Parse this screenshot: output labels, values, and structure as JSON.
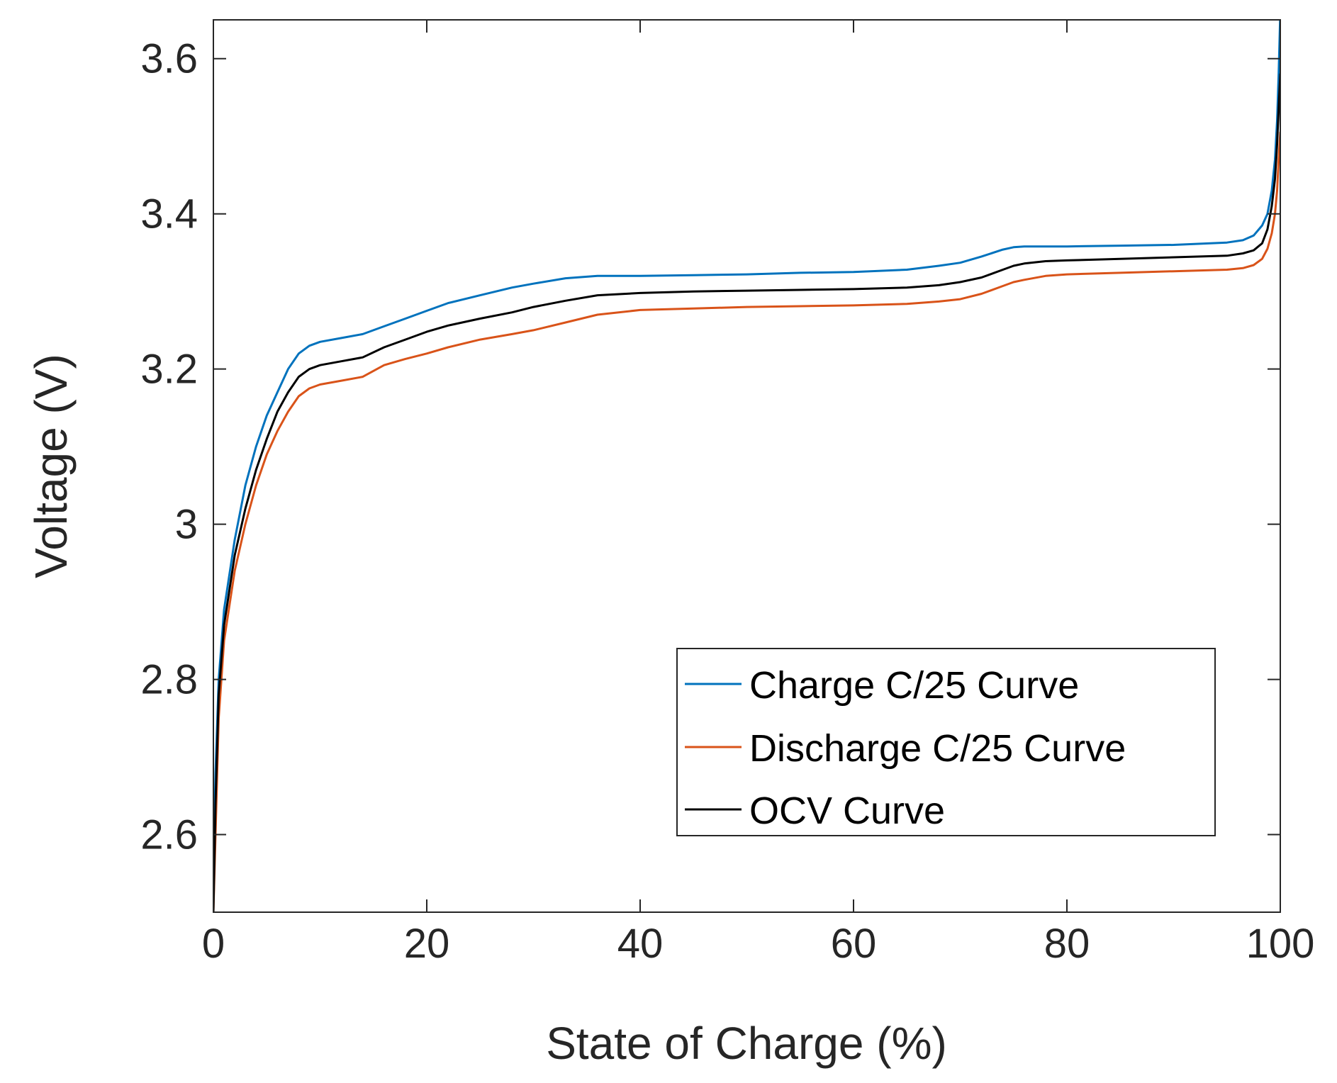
{
  "chart_data": {
    "type": "line",
    "title": "",
    "xlabel": "State of Charge (%)",
    "ylabel": "Voltage (V)",
    "xlim": [
      0,
      100
    ],
    "ylim": [
      2.5,
      3.65
    ],
    "grid": false,
    "legend_position": "bottom-right",
    "xticks": [
      {
        "value": 0,
        "label": "0"
      },
      {
        "value": 20,
        "label": "20"
      },
      {
        "value": 40,
        "label": "40"
      },
      {
        "value": 60,
        "label": "60"
      },
      {
        "value": 80,
        "label": "80"
      },
      {
        "value": 100,
        "label": "100"
      }
    ],
    "yticks": [
      {
        "value": 2.6,
        "label": "2.6"
      },
      {
        "value": 2.8,
        "label": "2.8"
      },
      {
        "value": 3.0,
        "label": "3"
      },
      {
        "value": 3.2,
        "label": "3.2"
      },
      {
        "value": 3.4,
        "label": "3.4"
      },
      {
        "value": 3.6,
        "label": "3.6"
      }
    ],
    "series": [
      {
        "name": "Charge C/25 Curve",
        "color": "#0072BD",
        "x": [
          0,
          0.2,
          0.5,
          1,
          2,
          3,
          4,
          5,
          6,
          7,
          8,
          9,
          10,
          12,
          14,
          16,
          18,
          20,
          22,
          25,
          28,
          30,
          33,
          36,
          40,
          45,
          50,
          55,
          60,
          65,
          68,
          70,
          72,
          74,
          75,
          76,
          78,
          80,
          85,
          90,
          95,
          96.5,
          97.5,
          98.3,
          98.8,
          99.2,
          99.5,
          99.7,
          99.85,
          100
        ],
        "y": [
          2.53,
          2.68,
          2.8,
          2.89,
          2.98,
          3.05,
          3.1,
          3.14,
          3.17,
          3.2,
          3.22,
          3.23,
          3.235,
          3.24,
          3.245,
          3.255,
          3.265,
          3.275,
          3.285,
          3.295,
          3.305,
          3.31,
          3.317,
          3.32,
          3.32,
          3.321,
          3.322,
          3.324,
          3.325,
          3.328,
          3.333,
          3.337,
          3.345,
          3.354,
          3.357,
          3.358,
          3.358,
          3.358,
          3.359,
          3.36,
          3.363,
          3.366,
          3.372,
          3.385,
          3.4,
          3.43,
          3.47,
          3.52,
          3.58,
          3.66
        ]
      },
      {
        "name": "Discharge C/25 Curve",
        "color": "#D95319",
        "x": [
          0,
          0.2,
          0.5,
          1,
          2,
          3,
          4,
          5,
          6,
          7,
          8,
          9,
          10,
          12,
          14,
          16,
          18,
          20,
          22,
          25,
          28,
          30,
          33,
          36,
          40,
          45,
          50,
          55,
          60,
          65,
          68,
          70,
          72,
          74,
          75,
          76,
          78,
          80,
          85,
          90,
          95,
          96.5,
          97.5,
          98.3,
          98.8,
          99.2,
          99.5,
          99.7,
          99.85,
          100
        ],
        "y": [
          2.5,
          2.6,
          2.75,
          2.85,
          2.94,
          3.0,
          3.05,
          3.09,
          3.12,
          3.145,
          3.165,
          3.175,
          3.18,
          3.185,
          3.19,
          3.205,
          3.213,
          3.22,
          3.228,
          3.238,
          3.245,
          3.25,
          3.26,
          3.27,
          3.276,
          3.278,
          3.28,
          3.281,
          3.282,
          3.284,
          3.287,
          3.29,
          3.297,
          3.307,
          3.312,
          3.315,
          3.32,
          3.322,
          3.324,
          3.326,
          3.328,
          3.33,
          3.334,
          3.342,
          3.355,
          3.375,
          3.4,
          3.43,
          3.47,
          3.505
        ]
      },
      {
        "name": "OCV Curve",
        "color": "#000000",
        "x": [
          0,
          0.2,
          0.5,
          1,
          2,
          3,
          4,
          5,
          6,
          7,
          8,
          9,
          10,
          12,
          14,
          16,
          18,
          20,
          22,
          25,
          28,
          30,
          33,
          36,
          40,
          45,
          50,
          55,
          60,
          65,
          68,
          70,
          72,
          74,
          75,
          76,
          78,
          80,
          85,
          90,
          95,
          96.5,
          97.5,
          98.3,
          98.8,
          99.2,
          99.5,
          99.7,
          99.85,
          100
        ],
        "y": [
          2.5,
          2.64,
          2.78,
          2.87,
          2.96,
          3.02,
          3.07,
          3.11,
          3.145,
          3.17,
          3.19,
          3.2,
          3.205,
          3.21,
          3.215,
          3.228,
          3.238,
          3.248,
          3.256,
          3.265,
          3.273,
          3.28,
          3.288,
          3.295,
          3.298,
          3.3,
          3.301,
          3.302,
          3.303,
          3.305,
          3.308,
          3.312,
          3.318,
          3.328,
          3.333,
          3.336,
          3.339,
          3.34,
          3.342,
          3.344,
          3.346,
          3.349,
          3.353,
          3.362,
          3.38,
          3.41,
          3.445,
          3.49,
          3.535,
          3.58
        ]
      }
    ]
  }
}
